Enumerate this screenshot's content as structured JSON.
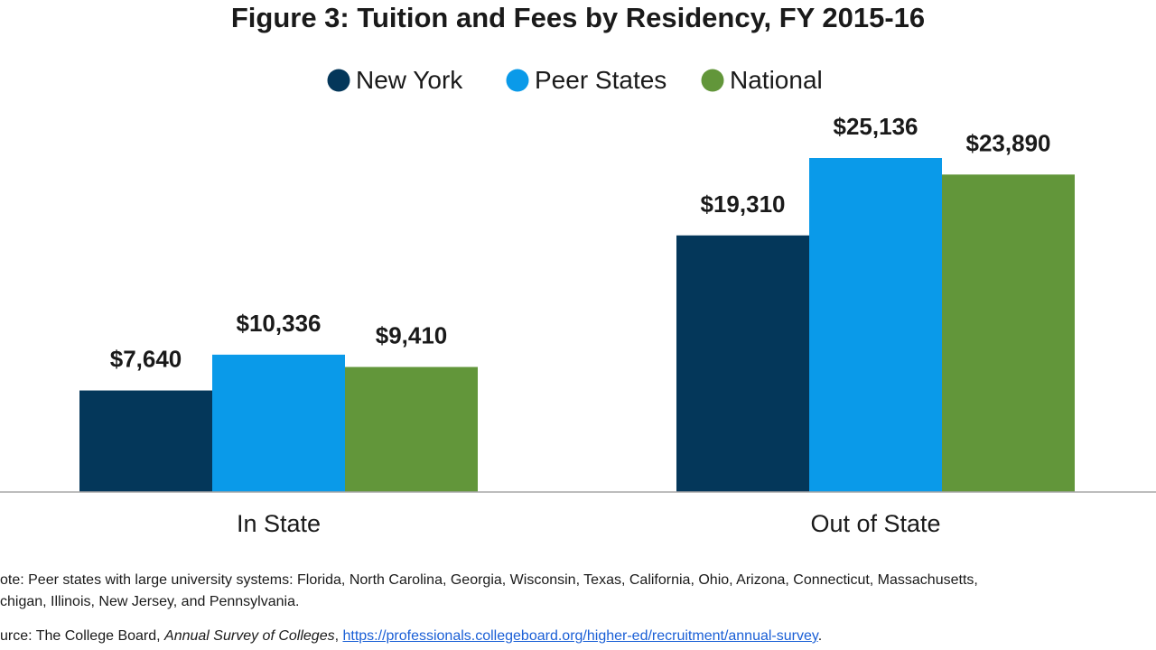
{
  "chart_data": {
    "type": "bar",
    "title": "Figure 3: Tuition and Fees by Residency, FY 2015-16",
    "categories": [
      "In State",
      "Out of State"
    ],
    "series": [
      {
        "name": "New York",
        "color": "#04375a",
        "values": [
          7640,
          19310
        ],
        "labels": [
          "$7,640",
          "$19,310"
        ]
      },
      {
        "name": "Peer States",
        "color": "#0a9ae9",
        "values": [
          10336,
          25136
        ],
        "labels": [
          "$10,336",
          "$25,136"
        ]
      },
      {
        "name": "National",
        "color": "#62963a",
        "values": [
          9410,
          23890
        ],
        "labels": [
          "$9,410",
          "$23,890"
        ]
      }
    ],
    "xlabel": "",
    "ylabel": "",
    "ylim": [
      0,
      25136
    ],
    "grid": false,
    "legend": "top-center"
  },
  "notes": {
    "note_text": "ote: Peer states with large university systems: Florida, North Carolina, Georgia, Wisconsin, Texas, California, Ohio, Arizona, Connecticut, Massachusetts,",
    "note_text_2": "chigan, Illinois, New Jersey, and Pennsylvania.",
    "source_prefix": "urce: The College Board, ",
    "source_title": "Annual Survey of Colleges",
    "source_sep": ", ",
    "source_link": "https://professionals.collegeboard.org/higher-ed/recruitment/annual-survey",
    "source_end": "."
  }
}
